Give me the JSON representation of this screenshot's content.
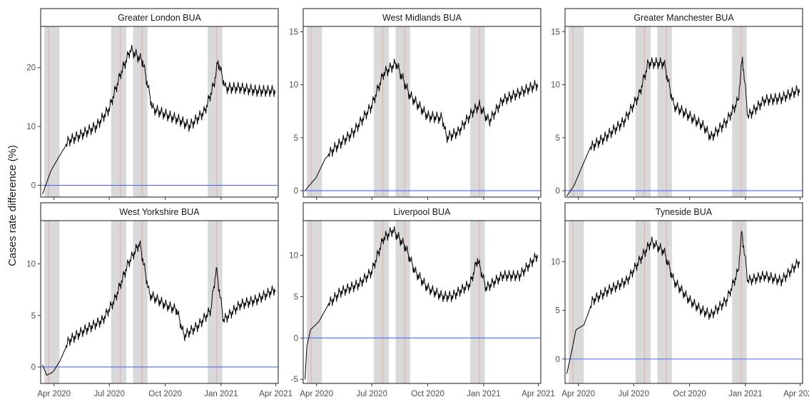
{
  "chart_data": {
    "type": "line",
    "ylabel": "Cases rate difference (%)",
    "xlabel": "",
    "grid": false,
    "colors": {
      "series": "#000000",
      "zero_line": "#4a6cf7",
      "shaded_band": "#d9d9d9",
      "event_line": "#e8a0a0"
    },
    "x_range": [
      "2020-03-10",
      "2021-04-05"
    ],
    "x_ticks": [
      {
        "date": "2020-04-01",
        "label": "Apr 2020"
      },
      {
        "date": "2020-07-01",
        "label": "Jul 2020"
      },
      {
        "date": "2020-10-01",
        "label": "Oct 2020"
      },
      {
        "date": "2021-01-01",
        "label": "Jan 2021"
      },
      {
        "date": "2021-04-01",
        "label": "Apr 2021"
      }
    ],
    "shaded_periods": [
      {
        "start": "2020-03-16",
        "end": "2020-04-10",
        "line": "2020-03-23"
      },
      {
        "start": "2020-07-04",
        "end": "2020-07-29",
        "line": "2020-07-19"
      },
      {
        "start": "2020-08-09",
        "end": "2020-09-02",
        "line": "2020-08-24"
      },
      {
        "start": "2020-12-10",
        "end": "2021-01-03",
        "line": "2020-12-25"
      }
    ],
    "facets": [
      {
        "title": "Greater London BUA",
        "ylim": [
          -2,
          27
        ],
        "y_ticks": [
          0,
          10,
          20
        ],
        "key_points": [
          [
            "2020-03-13",
            -1.5
          ],
          [
            "2020-03-20",
            0.5
          ],
          [
            "2020-03-27",
            2.5
          ],
          [
            "2020-04-10",
            5
          ],
          [
            "2020-04-25",
            7.5
          ],
          [
            "2020-05-15",
            8.5
          ],
          [
            "2020-06-10",
            10
          ],
          [
            "2020-07-01",
            13
          ],
          [
            "2020-07-20",
            19
          ],
          [
            "2020-08-05",
            23
          ],
          [
            "2020-08-25",
            21
          ],
          [
            "2020-09-10",
            13
          ],
          [
            "2020-10-01",
            12
          ],
          [
            "2020-10-25",
            11
          ],
          [
            "2020-11-10",
            10
          ],
          [
            "2020-12-05",
            12.5
          ],
          [
            "2020-12-20",
            17
          ],
          [
            "2020-12-27",
            21
          ],
          [
            "2021-01-08",
            16.5
          ],
          [
            "2021-02-01",
            16.5
          ],
          [
            "2021-03-01",
            16
          ],
          [
            "2021-03-31",
            16
          ]
        ]
      },
      {
        "title": "West Midlands BUA",
        "ylim": [
          -0.6,
          15.5
        ],
        "y_ticks": [
          0,
          5,
          10,
          15
        ],
        "key_points": [
          [
            "2020-03-13",
            0
          ],
          [
            "2020-03-20",
            0.5
          ],
          [
            "2020-03-31",
            1.2
          ],
          [
            "2020-04-15",
            3
          ],
          [
            "2020-05-01",
            4
          ],
          [
            "2020-06-01",
            5.5
          ],
          [
            "2020-07-01",
            8
          ],
          [
            "2020-07-20",
            11
          ],
          [
            "2020-08-10",
            12
          ],
          [
            "2020-09-01",
            9
          ],
          [
            "2020-10-01",
            7
          ],
          [
            "2020-10-25",
            6.8
          ],
          [
            "2020-11-01",
            5
          ],
          [
            "2020-11-20",
            5.5
          ],
          [
            "2020-12-15",
            7.5
          ],
          [
            "2020-12-25",
            8
          ],
          [
            "2021-01-10",
            6.5
          ],
          [
            "2021-02-01",
            8.5
          ],
          [
            "2021-03-01",
            9.2
          ],
          [
            "2021-03-31",
            10
          ]
        ]
      },
      {
        "title": "Greater Manchester BUA",
        "ylim": [
          -0.6,
          15.5
        ],
        "y_ticks": [
          0,
          5,
          10,
          15
        ],
        "key_points": [
          [
            "2020-03-13",
            -0.5
          ],
          [
            "2020-03-25",
            0.5
          ],
          [
            "2020-04-05",
            2
          ],
          [
            "2020-04-20",
            4
          ],
          [
            "2020-05-15",
            5
          ],
          [
            "2020-06-15",
            6.5
          ],
          [
            "2020-07-10",
            9
          ],
          [
            "2020-07-25",
            12
          ],
          [
            "2020-08-20",
            12
          ],
          [
            "2020-09-05",
            8
          ],
          [
            "2020-10-01",
            7
          ],
          [
            "2020-10-25",
            6
          ],
          [
            "2020-11-05",
            5
          ],
          [
            "2020-12-01",
            6.5
          ],
          [
            "2020-12-20",
            8.5
          ],
          [
            "2020-12-27",
            12.5
          ],
          [
            "2021-01-05",
            7
          ],
          [
            "2021-02-01",
            8.5
          ],
          [
            "2021-03-01",
            8.7
          ],
          [
            "2021-03-31",
            9.5
          ]
        ]
      },
      {
        "title": "West Yorkshire BUA",
        "ylim": [
          -1.6,
          14.2
        ],
        "y_ticks": [
          0,
          5,
          10
        ],
        "key_points": [
          [
            "2020-03-13",
            0.2
          ],
          [
            "2020-03-20",
            -0.8
          ],
          [
            "2020-03-30",
            -0.5
          ],
          [
            "2020-04-10",
            0.5
          ],
          [
            "2020-04-25",
            2.5
          ],
          [
            "2020-05-20",
            3.5
          ],
          [
            "2020-06-20",
            4.5
          ],
          [
            "2020-07-10",
            6.5
          ],
          [
            "2020-08-01",
            10
          ],
          [
            "2020-08-20",
            12
          ],
          [
            "2020-09-05",
            7
          ],
          [
            "2020-10-01",
            6
          ],
          [
            "2020-10-20",
            5.5
          ],
          [
            "2020-11-01",
            3
          ],
          [
            "2020-11-25",
            4
          ],
          [
            "2020-12-15",
            5.5
          ],
          [
            "2020-12-24",
            9.5
          ],
          [
            "2021-01-05",
            4.5
          ],
          [
            "2021-02-01",
            6
          ],
          [
            "2021-03-01",
            6.5
          ],
          [
            "2021-03-31",
            7.5
          ]
        ]
      },
      {
        "title": "Liverpool BUA",
        "ylim": [
          -5.5,
          14.2
        ],
        "y_ticks": [
          -5,
          0,
          5,
          10
        ],
        "key_points": [
          [
            "2020-03-13",
            -5
          ],
          [
            "2020-03-16",
            -1
          ],
          [
            "2020-03-22",
            1
          ],
          [
            "2020-04-05",
            2
          ],
          [
            "2020-04-20",
            4
          ],
          [
            "2020-05-10",
            5.5
          ],
          [
            "2020-06-10",
            6.5
          ],
          [
            "2020-07-01",
            8
          ],
          [
            "2020-07-20",
            12
          ],
          [
            "2020-08-05",
            13
          ],
          [
            "2020-08-25",
            11
          ],
          [
            "2020-09-10",
            8
          ],
          [
            "2020-10-01",
            6
          ],
          [
            "2020-10-25",
            5
          ],
          [
            "2020-11-10",
            5
          ],
          [
            "2020-12-10",
            6.5
          ],
          [
            "2020-12-22",
            9.5
          ],
          [
            "2021-01-05",
            6
          ],
          [
            "2021-02-01",
            7.5
          ],
          [
            "2021-03-01",
            7.5
          ],
          [
            "2021-03-31",
            10
          ]
        ]
      },
      {
        "title": "Tyneside BUA",
        "ylim": [
          -2.5,
          14.2
        ],
        "y_ticks": [
          0,
          5,
          10
        ],
        "key_points": [
          [
            "2020-03-13",
            -1.5
          ],
          [
            "2020-03-20",
            0.5
          ],
          [
            "2020-03-28",
            3
          ],
          [
            "2020-04-10",
            3.5
          ],
          [
            "2020-04-25",
            6
          ],
          [
            "2020-05-20",
            7
          ],
          [
            "2020-06-20",
            8
          ],
          [
            "2020-07-10",
            10
          ],
          [
            "2020-07-30",
            12
          ],
          [
            "2020-08-20",
            11
          ],
          [
            "2020-09-05",
            8
          ],
          [
            "2020-10-01",
            6
          ],
          [
            "2020-10-20",
            5
          ],
          [
            "2020-11-05",
            4.5
          ],
          [
            "2020-12-01",
            6
          ],
          [
            "2020-12-20",
            9
          ],
          [
            "2020-12-26",
            13
          ],
          [
            "2021-01-05",
            8
          ],
          [
            "2021-02-01",
            8.5
          ],
          [
            "2021-03-01",
            8
          ],
          [
            "2021-03-31",
            10
          ]
        ]
      }
    ]
  }
}
